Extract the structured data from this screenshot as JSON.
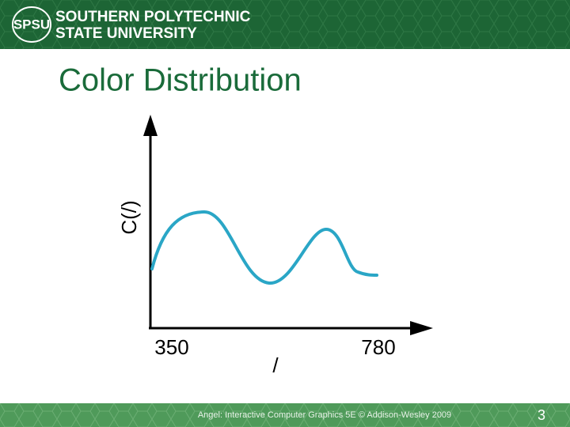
{
  "header": {
    "logo": "SPSU",
    "line1": "SOUTHERN POLYTECHNIC",
    "line2": "STATE UNIVERSITY"
  },
  "title": "Color Distribution",
  "figure": {
    "y_label": "C(/)",
    "x_start": "350",
    "x_end": "780",
    "x_label": "/"
  },
  "footer": {
    "credit": "Angel: Interactive Computer Graphics 5E © Addison-Wesley 2009",
    "page": "3"
  }
}
